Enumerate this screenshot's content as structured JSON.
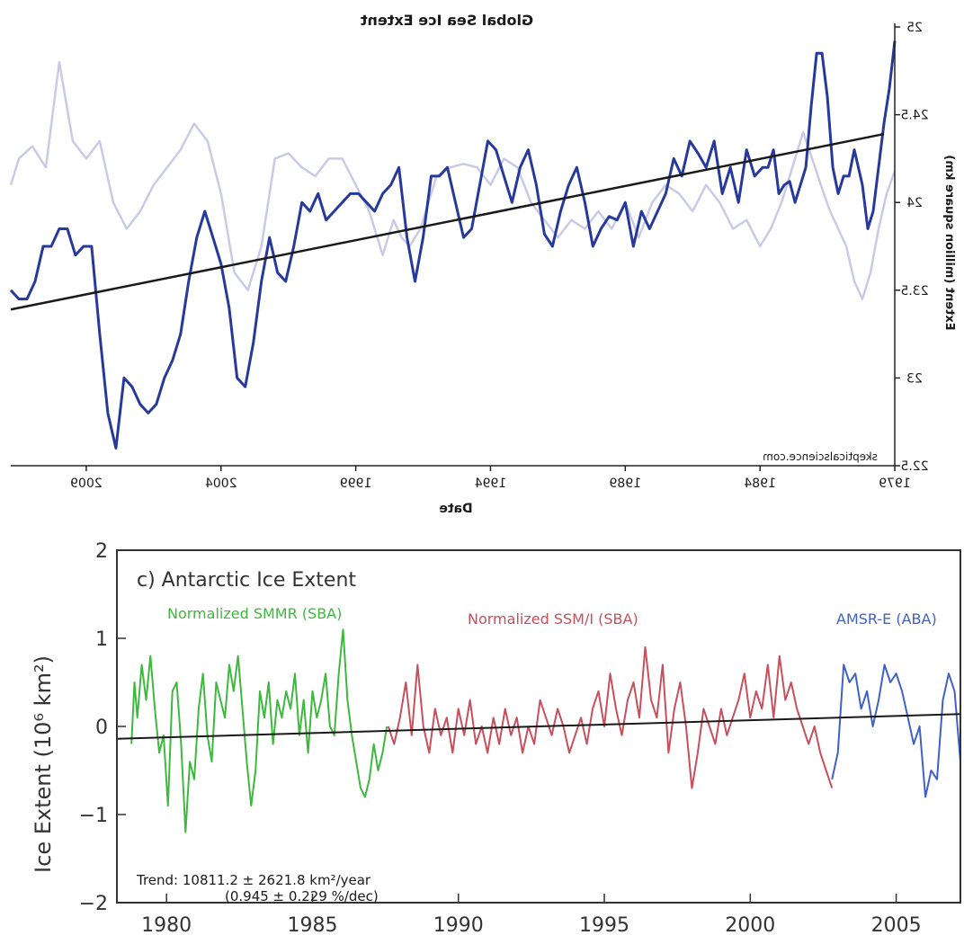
{
  "chart_data": [
    {
      "type": "line",
      "title": "Global Sea Ice Extent",
      "xlabel": "Date",
      "ylabel": "Extent (million square km)",
      "source": "skepticalscience.com",
      "mirrored": true,
      "xlim": [
        1979,
        2011.8
      ],
      "ylim": [
        22.5,
        25
      ],
      "x_ticks": [
        "1979",
        "1984",
        "1989",
        "1994",
        "1999",
        "2004",
        "2009"
      ],
      "y_ticks": [
        "22.5",
        "23",
        "23.5",
        "24",
        "24.5",
        "25"
      ],
      "grid": false,
      "colors": {
        "main": "#27399a",
        "faint": "#c9cbe6",
        "trend": "#1a1a1a"
      },
      "series": [
        {
          "style": "faint",
          "x": [
            1979.0,
            1979.3,
            1979.6,
            1979.9,
            1980.2,
            1980.5,
            1980.8,
            1981.1,
            1981.4,
            1981.7,
            1982.0,
            1982.4,
            1982.8,
            1983.2,
            1983.6,
            1984.0,
            1984.5,
            1985.0,
            1985.5,
            1986.0,
            1986.5,
            1987.0,
            1987.5,
            1988.0,
            1988.5,
            1989.0,
            1989.5,
            1990.0,
            1990.5,
            1991.0,
            1991.5,
            1992.0,
            1992.5,
            1993.0,
            1993.5,
            1994.0,
            1994.5,
            1995.0,
            1995.5,
            1996.0,
            1996.3,
            1996.6,
            1997.0,
            1997.3,
            1997.6,
            1998.0,
            1998.5,
            1999.0,
            1999.5,
            2000.0,
            2000.5,
            2001.0,
            2001.5,
            2002.0,
            2002.5,
            2003.0,
            2003.5,
            2004.0,
            2004.5,
            2005.0,
            2005.5,
            2006.0,
            2006.5,
            2007.0,
            2007.5,
            2008.0,
            2008.5,
            2009.0,
            2009.5,
            2010.0,
            2010.5,
            2011.0,
            2011.5,
            2011.8
          ],
          "y": [
            24.18,
            24.05,
            23.85,
            23.6,
            23.45,
            23.55,
            23.75,
            23.85,
            23.95,
            24.08,
            24.22,
            24.4,
            24.2,
            24.0,
            23.85,
            23.75,
            23.9,
            23.85,
            24.0,
            24.1,
            23.95,
            24.05,
            24.1,
            24.0,
            23.8,
            24.0,
            23.85,
            23.95,
            23.85,
            23.9,
            23.8,
            23.9,
            24.0,
            24.2,
            24.25,
            24.1,
            24.2,
            24.22,
            24.2,
            24.15,
            24.0,
            23.85,
            23.75,
            23.8,
            23.9,
            23.7,
            23.95,
            24.1,
            24.25,
            24.25,
            24.15,
            24.2,
            24.28,
            24.25,
            23.75,
            23.5,
            23.6,
            24.05,
            24.35,
            24.45,
            24.3,
            24.2,
            24.1,
            23.95,
            23.85,
            24.0,
            24.35,
            24.25,
            24.35,
            24.8,
            24.2,
            24.32,
            24.25,
            24.1
          ]
        },
        {
          "style": "main",
          "x": [
            1979.0,
            1979.2,
            1979.4,
            1979.6,
            1979.8,
            1980.0,
            1980.2,
            1980.5,
            1980.7,
            1980.9,
            1981.1,
            1981.3,
            1981.5,
            1981.7,
            1981.9,
            1982.1,
            1982.3,
            1982.5,
            1982.7,
            1982.9,
            1983.1,
            1983.3,
            1983.5,
            1983.7,
            1983.9,
            1984.2,
            1984.5,
            1984.8,
            1985.1,
            1985.4,
            1985.7,
            1986.0,
            1986.3,
            1986.6,
            1986.9,
            1987.2,
            1987.5,
            1987.8,
            1988.1,
            1988.4,
            1988.7,
            1989.0,
            1989.3,
            1989.6,
            1989.9,
            1990.2,
            1990.5,
            1990.8,
            1991.1,
            1991.4,
            1991.7,
            1992.0,
            1992.3,
            1992.6,
            1992.9,
            1993.2,
            1993.5,
            1993.8,
            1994.1,
            1994.4,
            1994.7,
            1995.0,
            1995.3,
            1995.6,
            1995.9,
            1996.2,
            1996.5,
            1996.8,
            1997.1,
            1997.4,
            1997.7,
            1998.0,
            1998.3,
            1998.6,
            1998.9,
            1999.2,
            1999.5,
            1999.8,
            2000.1,
            2000.4,
            2000.7,
            2001.0,
            2001.3,
            2001.6,
            2001.9,
            2002.2,
            2002.5,
            2002.8,
            2003.1,
            2003.4,
            2003.7,
            2004.0,
            2004.3,
            2004.6,
            2004.9,
            2005.2,
            2005.5,
            2005.8,
            2006.1,
            2006.4,
            2006.7,
            2007.0,
            2007.3,
            2007.6,
            2007.9,
            2008.2,
            2008.5,
            2008.8,
            2009.1,
            2009.4,
            2009.7,
            2010.0,
            2010.3,
            2010.6,
            2010.9,
            2011.2,
            2011.5,
            2011.8
          ],
          "y": [
            24.92,
            24.65,
            24.45,
            24.2,
            23.95,
            23.85,
            24.1,
            24.3,
            24.15,
            24.15,
            24.05,
            24.2,
            24.6,
            24.85,
            24.85,
            24.55,
            24.2,
            24.1,
            24.0,
            24.12,
            24.1,
            24.05,
            24.3,
            24.2,
            24.2,
            24.15,
            24.3,
            24.0,
            24.2,
            24.05,
            24.35,
            24.2,
            24.28,
            24.35,
            24.15,
            24.25,
            24.05,
            23.95,
            23.85,
            23.95,
            23.75,
            24.0,
            23.9,
            23.92,
            23.85,
            23.75,
            24.0,
            24.2,
            24.1,
            23.95,
            23.75,
            23.82,
            24.1,
            24.3,
            24.2,
            24.0,
            24.15,
            24.3,
            24.35,
            24.1,
            23.85,
            23.8,
            24.0,
            24.2,
            24.15,
            24.15,
            23.8,
            23.55,
            23.8,
            24.2,
            24.1,
            24.05,
            23.95,
            24.0,
            24.05,
            24.05,
            24.0,
            23.95,
            23.9,
            24.05,
            23.95,
            24.0,
            23.75,
            23.55,
            23.6,
            23.8,
            23.55,
            23.2,
            22.95,
            23.0,
            23.4,
            23.65,
            23.8,
            23.95,
            23.8,
            23.55,
            23.25,
            23.1,
            23.0,
            22.85,
            22.8,
            22.85,
            22.95,
            23.0,
            22.6,
            22.8,
            23.25,
            23.75,
            23.75,
            23.7,
            23.85,
            23.85,
            23.75,
            23.75,
            23.55,
            23.45,
            23.45,
            23.5
          ]
        }
      ],
      "trend": {
        "x": [
          1979.4,
          2011.8
        ],
        "y": [
          24.39,
          23.39
        ]
      }
    },
    {
      "type": "line",
      "title": "c) Antarctic Ice Extent",
      "xlabel": "",
      "ylabel": "Ice Extent (10⁶ km²)",
      "xlim": [
        1978.3,
        2007.2
      ],
      "ylim": [
        -2,
        2
      ],
      "x_ticks": [
        "1980",
        "1985",
        "1990",
        "1995",
        "2000",
        "2005"
      ],
      "y_ticks": [
        "−2",
        "−1",
        "0",
        "1",
        "2"
      ],
      "grid": false,
      "annotations": {
        "trend_line1": "Trend: 10811.2 ± 2621.8  km²/year",
        "trend_line2": "(0.945 ± 0.229  %/dec)"
      },
      "series": [
        {
          "name": "Normalized SMMR (SBA)",
          "color": "#3fb83f",
          "x": [
            1978.8,
            1978.9,
            1979.0,
            1979.15,
            1979.3,
            1979.45,
            1979.6,
            1979.75,
            1979.9,
            1980.05,
            1980.2,
            1980.35,
            1980.5,
            1980.65,
            1980.8,
            1980.95,
            1981.1,
            1981.25,
            1981.4,
            1981.55,
            1981.7,
            1981.85,
            1982.0,
            1982.15,
            1982.3,
            1982.45,
            1982.6,
            1982.75,
            1982.9,
            1983.05,
            1983.2,
            1983.35,
            1983.5,
            1983.65,
            1983.8,
            1983.95,
            1984.1,
            1984.25,
            1984.4,
            1984.55,
            1984.7,
            1984.85,
            1985.0,
            1985.15,
            1985.3,
            1985.45,
            1985.6,
            1985.75,
            1985.9,
            1986.05,
            1986.2,
            1986.35,
            1986.5,
            1986.65,
            1986.8,
            1986.95,
            1987.1,
            1987.25,
            1987.4,
            1987.55
          ],
          "y": [
            -0.2,
            0.5,
            0.1,
            0.7,
            0.3,
            0.8,
            0.2,
            -0.3,
            -0.1,
            -0.9,
            0.4,
            0.5,
            -0.2,
            -1.2,
            -0.4,
            -0.6,
            0.2,
            0.6,
            -0.1,
            -0.4,
            0.5,
            0.3,
            0.1,
            0.7,
            0.4,
            0.8,
            0.2,
            -0.4,
            -0.9,
            -0.5,
            0.4,
            0.1,
            0.5,
            -0.2,
            0.3,
            0.1,
            0.4,
            0.2,
            0.6,
            -0.1,
            0.3,
            -0.3,
            0.4,
            0.1,
            0.3,
            0.6,
            0.0,
            -0.1,
            0.6,
            1.1,
            0.3,
            -0.1,
            -0.4,
            -0.7,
            -0.8,
            -0.6,
            -0.2,
            -0.5,
            -0.3,
            0.0
          ]
        },
        {
          "name": "Normalized SSM/I (SBA)",
          "color": "#c84f5c",
          "x": [
            1987.6,
            1987.8,
            1988.0,
            1988.2,
            1988.4,
            1988.6,
            1988.8,
            1989.0,
            1989.2,
            1989.4,
            1989.6,
            1989.8,
            1990.0,
            1990.2,
            1990.4,
            1990.6,
            1990.8,
            1991.0,
            1991.2,
            1991.4,
            1991.6,
            1991.8,
            1992.0,
            1992.2,
            1992.4,
            1992.6,
            1992.8,
            1993.0,
            1993.2,
            1993.4,
            1993.6,
            1993.8,
            1994.0,
            1994.2,
            1994.4,
            1994.6,
            1994.8,
            1995.0,
            1995.2,
            1995.4,
            1995.6,
            1995.8,
            1996.0,
            1996.2,
            1996.4,
            1996.6,
            1996.8,
            1997.0,
            1997.2,
            1997.4,
            1997.6,
            1997.8,
            1998.0,
            1998.2,
            1998.4,
            1998.6,
            1998.8,
            1999.0,
            1999.2,
            1999.4,
            1999.6,
            1999.8,
            2000.0,
            2000.2,
            2000.4,
            2000.6,
            2000.8,
            2001.0,
            2001.2,
            2001.4,
            2001.6,
            2001.8,
            2002.0,
            2002.2,
            2002.4,
            2002.6,
            2002.8
          ],
          "y": [
            0.0,
            -0.2,
            0.1,
            0.5,
            -0.1,
            0.7,
            0.0,
            -0.3,
            0.2,
            -0.1,
            0.1,
            -0.3,
            0.2,
            -0.1,
            0.3,
            -0.2,
            0.0,
            -0.3,
            0.1,
            -0.2,
            0.2,
            -0.1,
            0.1,
            -0.3,
            0.0,
            -0.2,
            0.3,
            0.1,
            -0.1,
            0.2,
            0.0,
            -0.3,
            -0.1,
            0.1,
            -0.2,
            0.2,
            0.4,
            0.0,
            0.6,
            0.2,
            -0.1,
            0.3,
            0.5,
            0.1,
            0.9,
            0.3,
            0.1,
            0.7,
            -0.3,
            0.2,
            0.5,
            0.0,
            -0.7,
            -0.3,
            0.2,
            0.0,
            -0.2,
            0.2,
            -0.1,
            0.1,
            0.3,
            0.6,
            0.1,
            0.4,
            0.2,
            0.7,
            0.1,
            0.8,
            0.3,
            0.5,
            0.2,
            0.0,
            -0.2,
            0.0,
            -0.3,
            -0.5,
            -0.7
          ]
        },
        {
          "name": "AMSR-E (ABA)",
          "color": "#3f61c8",
          "x": [
            2002.8,
            2003.0,
            2003.2,
            2003.4,
            2003.6,
            2003.8,
            2004.0,
            2004.2,
            2004.4,
            2004.6,
            2004.8,
            2005.0,
            2005.2,
            2005.4,
            2005.6,
            2005.8,
            2006.0,
            2006.2,
            2006.4,
            2006.6,
            2006.8,
            2007.0,
            2007.2
          ],
          "y": [
            -0.6,
            -0.3,
            0.7,
            0.5,
            0.6,
            0.2,
            0.4,
            0.0,
            0.3,
            0.7,
            0.5,
            0.6,
            0.4,
            0.1,
            -0.2,
            0.0,
            -0.8,
            -0.5,
            -0.6,
            0.3,
            0.6,
            0.4,
            -0.4
          ]
        }
      ],
      "trend": {
        "x": [
          1978.3,
          2007.2
        ],
        "y": [
          -0.14,
          0.14
        ]
      }
    }
  ]
}
